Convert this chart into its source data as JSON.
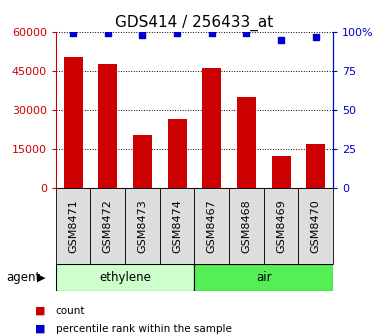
{
  "title": "GDS414 / 256433_at",
  "samples": [
    "GSM8471",
    "GSM8472",
    "GSM8473",
    "GSM8474",
    "GSM8467",
    "GSM8468",
    "GSM8469",
    "GSM8470"
  ],
  "counts": [
    50500,
    47500,
    20500,
    26500,
    46000,
    35000,
    12500,
    17000
  ],
  "percentiles": [
    99,
    99,
    98,
    99,
    99,
    99,
    95,
    97
  ],
  "groups": [
    {
      "label": "ethylene",
      "start": 0,
      "end": 4,
      "color": "#ccffcc"
    },
    {
      "label": "air",
      "start": 4,
      "end": 8,
      "color": "#55ee55"
    }
  ],
  "group_label": "agent",
  "ylim_left": [
    0,
    60000
  ],
  "ylim_right": [
    0,
    100
  ],
  "yticks_left": [
    0,
    15000,
    30000,
    45000,
    60000
  ],
  "ytick_labels_left": [
    "0",
    "15000",
    "30000",
    "45000",
    "60000"
  ],
  "yticks_right": [
    0,
    25,
    50,
    75,
    100
  ],
  "ytick_labels_right": [
    "0",
    "25",
    "50",
    "75",
    "100%"
  ],
  "bar_color": "#cc0000",
  "dot_color": "#0000cc",
  "grid_color": "#000000",
  "legend_items": [
    {
      "label": "count",
      "color": "#cc0000"
    },
    {
      "label": "percentile rank within the sample",
      "color": "#0000cc"
    }
  ],
  "title_fontsize": 11,
  "tick_fontsize": 8,
  "label_fontsize": 8.5,
  "cell_color": "#dddddd"
}
